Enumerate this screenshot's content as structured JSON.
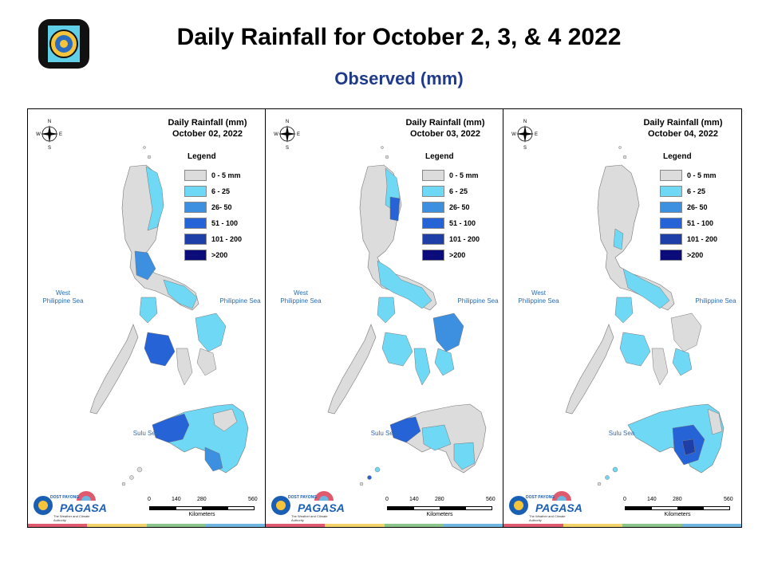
{
  "header": {
    "title": "Daily Rainfall for October 2, 3, & 4 2022",
    "subtitle": "Observed (mm)"
  },
  "legend": {
    "heading": "Legend",
    "items": [
      {
        "label": "0 - 5 mm",
        "color": "#dcdcdc"
      },
      {
        "label": "6 - 25",
        "color": "#6fd9f5"
      },
      {
        "label": "26- 50",
        "color": "#3d8fe0"
      },
      {
        "label": "51 - 100",
        "color": "#2563d6"
      },
      {
        "label": "101 - 200",
        "color": "#1e3fa8"
      },
      {
        "label": ">200",
        "color": "#0b0b7a"
      }
    ]
  },
  "panels": [
    {
      "title_line1": "Daily Rainfall (mm)",
      "title_line2": "October 02, 2022",
      "legend_labels": [
        "0 - 5 mm",
        "6 - 25",
        "26- 50",
        "51 - 100",
        "101 - 200",
        ">200"
      ]
    },
    {
      "title_line1": "Daily Rainfall (mm)",
      "title_line2": "October 03, 2022",
      "legend_labels": [
        "0 - 5 mm",
        "6 - 25",
        "26- 50",
        "51 - 100",
        "101 - 200",
        ">200"
      ]
    },
    {
      "title_line1": "Daily Rainfall (mm)",
      "title_line2": "October 04, 2022",
      "legend_labels": [
        "0 - 5 mm",
        "6 - 25",
        "26- 50",
        "51 - 100",
        "101 - 200",
        ">200"
      ]
    }
  ],
  "map_labels": {
    "west_sea_line1": "West",
    "west_sea_line2": "Philippine Sea",
    "philippine_sea": "Philippine Sea",
    "sulu_sea": "Sulu Sea"
  },
  "compass": {
    "n": "N",
    "s": "S",
    "e": "E",
    "w": "W"
  },
  "scale": {
    "ticks": [
      "0",
      "140",
      "280",
      "560"
    ],
    "unit": "Kilometers"
  },
  "brand": {
    "small": "DOST PAYONG",
    "name": "PAGASA",
    "tagline": "The Weather and Climate Authority"
  },
  "strip_colors": [
    "#e05a6d",
    "#f2d36b",
    "#8cc48c",
    "#6fb7e0"
  ]
}
